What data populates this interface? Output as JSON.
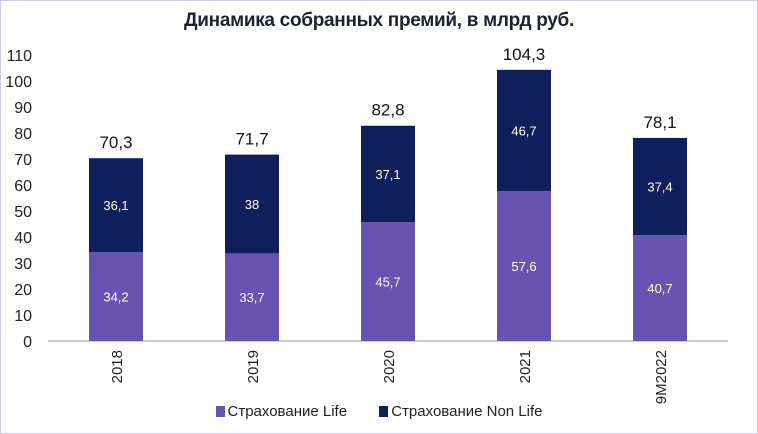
{
  "chart_data": {
    "type": "bar",
    "stacked": true,
    "title": "Динамика собранных премий, в млрд руб.",
    "xlabel": "",
    "ylabel": "",
    "categories": [
      "2018",
      "2019",
      "2020",
      "2021",
      "9M2022"
    ],
    "series": [
      {
        "name": "Страхование Life",
        "color": "#6753b1",
        "values": [
          34.2,
          33.7,
          45.7,
          57.6,
          40.7
        ],
        "labels": [
          "34,2",
          "33,7",
          "45,7",
          "57,6",
          "40,7"
        ]
      },
      {
        "name": "Страхование Non Life",
        "color": "#0e1f5b",
        "values": [
          36.1,
          38,
          37.1,
          46.7,
          37.4
        ],
        "labels": [
          "36,1",
          "38",
          "37,1",
          "46,7",
          "37,4"
        ]
      }
    ],
    "totals": [
      "70,3",
      "71,7",
      "82,8",
      "104,3",
      "78,1"
    ],
    "yticks": [
      0,
      10,
      20,
      30,
      40,
      50,
      60,
      70,
      80,
      90,
      100,
      110
    ],
    "ylim": [
      0,
      110
    ],
    "grid": false,
    "legend": "bottom"
  }
}
